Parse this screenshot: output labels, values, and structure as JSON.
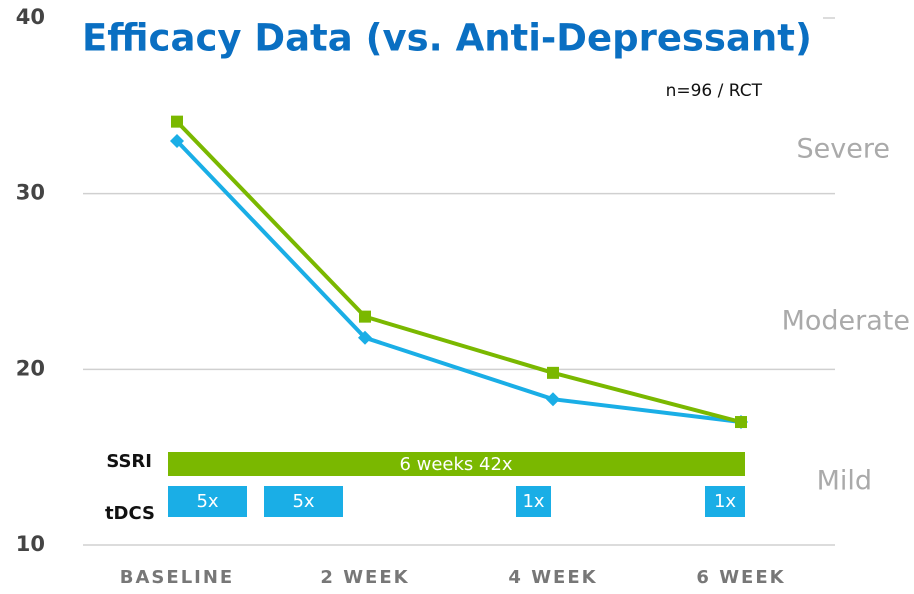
{
  "chart_data": {
    "type": "line",
    "title": "Efficacy Data (vs. Anti-Depressant)",
    "note": "n=96 / RCT",
    "categories": [
      "BASELINE",
      "2 WEEK",
      "4 WEEK",
      "6 WEEK"
    ],
    "series": [
      {
        "name": "SSRI",
        "color": "#7ab800",
        "marker": "square",
        "values": [
          34.1,
          23.0,
          19.8,
          17.0
        ]
      },
      {
        "name": "tDCS",
        "color": "#1aaee6",
        "marker": "diamond",
        "values": [
          33.0,
          21.8,
          18.3,
          17.0
        ]
      }
    ],
    "ylim": [
      10,
      40
    ],
    "yticks": [
      10,
      20,
      30,
      40
    ],
    "grid": true,
    "severity_labels": [
      "Severe",
      "Moderate",
      "Mild"
    ],
    "ssri_schedule": "6 weeks 42x",
    "tdcs_schedule": [
      "5x",
      "5x",
      "1x",
      "1x"
    ]
  }
}
